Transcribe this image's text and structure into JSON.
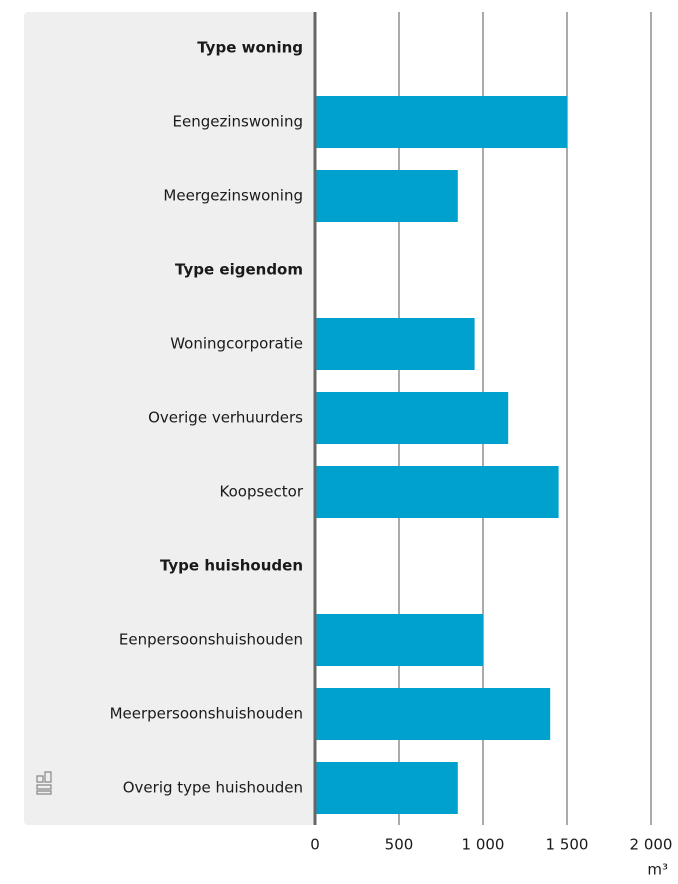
{
  "chart_data": {
    "type": "bar",
    "orientation": "horizontal",
    "color": "#00a1cd",
    "groups": [
      {
        "name": "Type woning",
        "categories": [
          "Eengezinswoning",
          "Meergezinswoning"
        ],
        "values": [
          1500,
          850
        ]
      },
      {
        "name": "Type eigendom",
        "categories": [
          "Woningcorporatie",
          "Overige verhuurders",
          "Koopsector"
        ],
        "values": [
          950,
          1150,
          1450
        ]
      },
      {
        "name": "Type huishouden",
        "categories": [
          "Eenpersoonshuishouden",
          "Meerpersoonshuishouden",
          "Overig type huishouden"
        ],
        "values": [
          1000,
          1400,
          850
        ]
      }
    ],
    "xlim": [
      0,
      2000
    ],
    "xticks": [
      0,
      500,
      {
        "value": 1000,
        "label": "1 000"
      },
      {
        "value": 1500,
        "label": "1 500"
      },
      {
        "value": 2000,
        "label": "2 000"
      }
    ],
    "x_unit": "m³",
    "grid": true
  }
}
